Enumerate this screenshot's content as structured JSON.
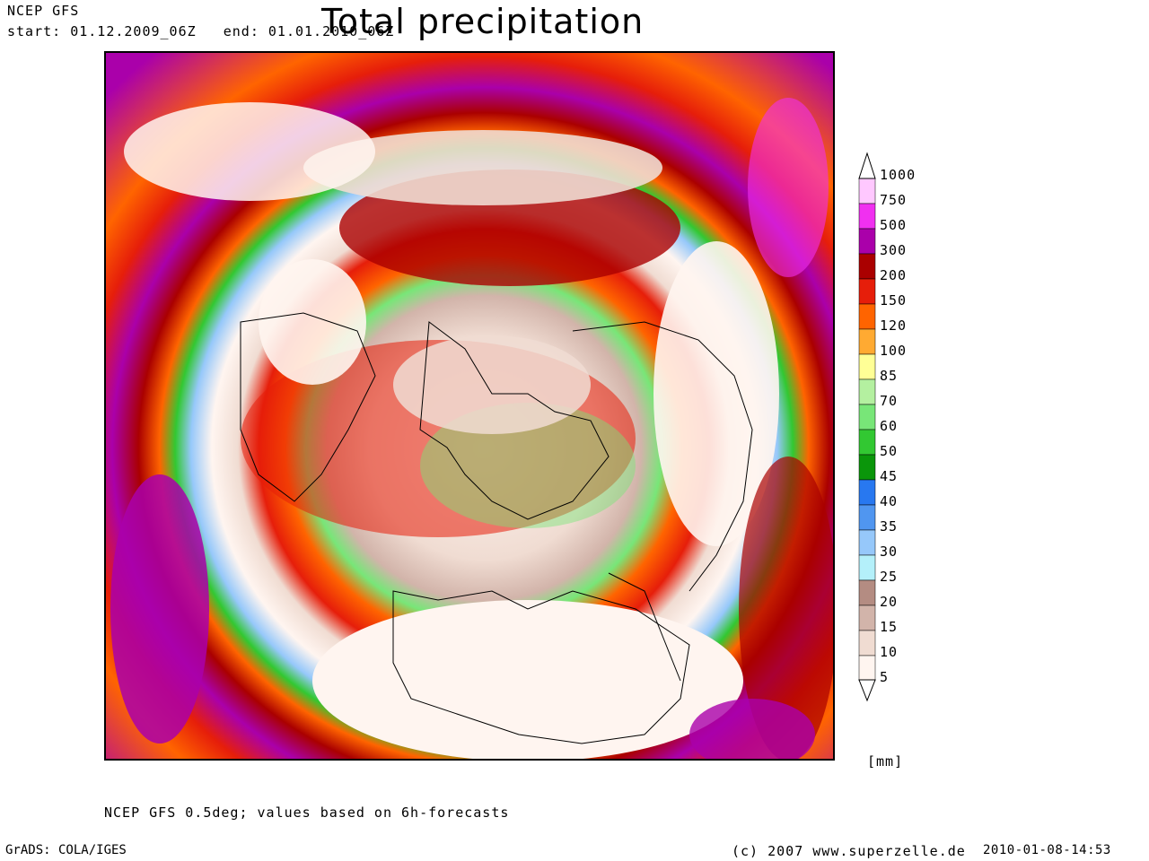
{
  "header": {
    "model": "NCEP GFS",
    "period": "start: 01.12.2009_06Z   end: 01.01.2010_06Z",
    "title": "Total precipitation"
  },
  "legend": {
    "unit": "[mm]",
    "classes": [
      {
        "label": "1000",
        "color": "#ffffff"
      },
      {
        "label": "750",
        "color": "#ffc8ff"
      },
      {
        "label": "500",
        "color": "#f030f0"
      },
      {
        "label": "300",
        "color": "#aa00aa"
      },
      {
        "label": "200",
        "color": "#aa0000"
      },
      {
        "label": "150",
        "color": "#e61e0a"
      },
      {
        "label": "120",
        "color": "#ff6400"
      },
      {
        "label": "100",
        "color": "#ffaa32"
      },
      {
        "label": "85",
        "color": "#ffff96"
      },
      {
        "label": "70",
        "color": "#b4f0a0"
      },
      {
        "label": "60",
        "color": "#78e678"
      },
      {
        "label": "50",
        "color": "#32c832"
      },
      {
        "label": "45",
        "color": "#0a960a"
      },
      {
        "label": "40",
        "color": "#2878f0"
      },
      {
        "label": "35",
        "color": "#5096f0"
      },
      {
        "label": "30",
        "color": "#96c8fa"
      },
      {
        "label": "25",
        "color": "#b4f0fa"
      },
      {
        "label": "20",
        "color": "#b48c82"
      },
      {
        "label": "15",
        "color": "#d2b4aa"
      },
      {
        "label": "10",
        "color": "#f0dcd2"
      },
      {
        "label": "5",
        "color": "#fff5f0"
      }
    ]
  },
  "footer": {
    "note": "NCEP GFS 0.5deg; values based on 6h-forecasts",
    "software": "GrADS: COLA/IGES",
    "copyright": "(c) 2007 www.superzelle.de",
    "timestamp": "2010-01-08-14:53"
  }
}
